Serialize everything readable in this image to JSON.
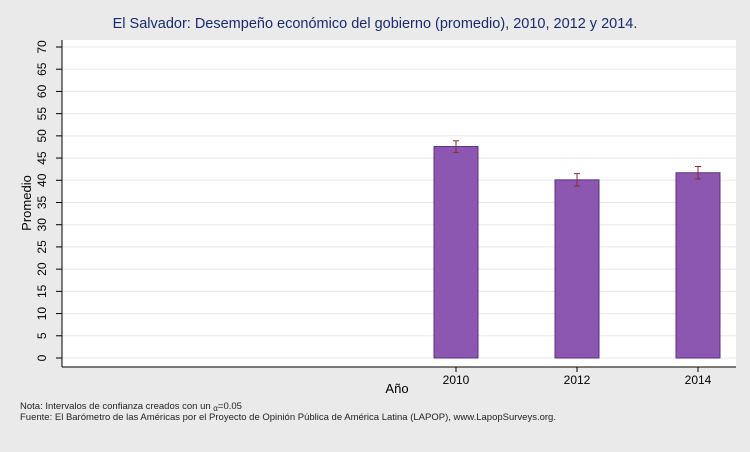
{
  "chart_data": {
    "type": "bar",
    "title": "El Salvador: Desempeño económico del gobierno (promedio), 2010, 2012 y 2014.",
    "xlabel": "Año",
    "ylabel": "Promedio",
    "categories": [
      "2010",
      "2012",
      "2014"
    ],
    "values": [
      47.6,
      40.1,
      41.7
    ],
    "ci_low": [
      46.3,
      38.7,
      40.3
    ],
    "ci_high": [
      48.9,
      41.5,
      43.1
    ],
    "ylim": [
      0,
      70
    ],
    "yticks": [
      "0",
      "5",
      "10",
      "15",
      "20",
      "25",
      "30",
      "35",
      "40",
      "45",
      "50",
      "55",
      "60",
      "65",
      "70"
    ],
    "grid": true,
    "bar_color": "#8b57b0",
    "errorbar_color": "#8b2c2c"
  },
  "notes": {
    "nota_prefix": "Nota: Intervalos de confianza creados con un ",
    "alpha_symbol": "α",
    "alpha_value": "=0.05",
    "fuente": "Fuente: El Barómetro de las Américas por el Proyecto de Opinión Pública de América Latina (LAPOP), www.LapopSurveys.org."
  }
}
